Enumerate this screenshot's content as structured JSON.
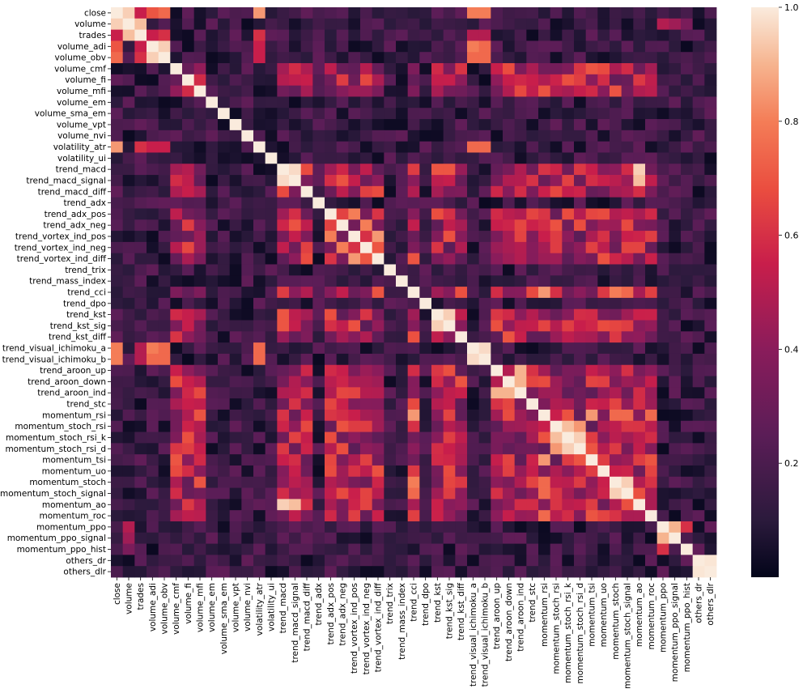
{
  "chart_data": {
    "type": "heatmap",
    "title": "",
    "xlabel": "",
    "ylabel": "",
    "variables": [
      "close",
      "volume",
      "trades",
      "volume_adi",
      "volume_obv",
      "volume_cmf",
      "volume_fi",
      "volume_mfi",
      "volume_em",
      "volume_sma_em",
      "volume_vpt",
      "volume_nvi",
      "volatility_atr",
      "volatility_ui",
      "trend_macd",
      "trend_macd_signal",
      "trend_macd_diff",
      "trend_adx",
      "trend_adx_pos",
      "trend_adx_neg",
      "trend_vortex_ind_pos",
      "trend_vortex_ind_neg",
      "trend_vortex_ind_diff",
      "trend_trix",
      "trend_mass_index",
      "trend_cci",
      "trend_dpo",
      "trend_kst",
      "trend_kst_sig",
      "trend_kst_diff",
      "trend_visual_ichimoku_a",
      "trend_visual_ichimoku_b",
      "trend_aroon_up",
      "trend_aroon_down",
      "trend_aroon_ind",
      "trend_stc",
      "momentum_rsi",
      "momentum_stoch_rsi",
      "momentum_stoch_rsi_k",
      "momentum_stoch_rsi_d",
      "momentum_tsi",
      "momentum_uo",
      "momentum_stoch",
      "momentum_stoch_signal",
      "momentum_ao",
      "momentum_roc",
      "momentum_ppo",
      "momentum_ppo_signal",
      "momentum_ppo_hist",
      "others_dr",
      "others_dlr"
    ],
    "value_range": [
      0.0,
      1.0
    ],
    "colorbar": {
      "ticks": [
        "0.2",
        "0.4",
        "0.6",
        "0.8",
        "1.0"
      ],
      "tick_values": [
        0.2,
        0.4,
        0.6,
        0.8,
        1.0
      ]
    },
    "colormap": "rocket",
    "cluster_groups": [
      [
        0,
        2,
        3,
        4,
        12,
        30,
        31
      ],
      [
        1,
        46,
        47,
        48
      ],
      [
        5,
        6,
        7,
        14,
        15,
        16,
        18,
        19,
        20,
        21,
        22,
        25,
        27,
        28,
        29,
        32,
        33,
        34,
        35,
        36,
        37,
        38,
        39,
        40,
        41,
        42,
        43,
        44,
        45
      ],
      [
        49,
        50
      ]
    ],
    "strong_pairs": [
      [
        0,
        1,
        0.95
      ],
      [
        0,
        2,
        0.55
      ],
      [
        0,
        3,
        0.7
      ],
      [
        0,
        4,
        0.75
      ],
      [
        0,
        12,
        0.85
      ],
      [
        0,
        30,
        0.8
      ],
      [
        0,
        31,
        0.8
      ],
      [
        1,
        2,
        0.92
      ],
      [
        1,
        46,
        0.5
      ],
      [
        1,
        47,
        0.45
      ],
      [
        1,
        48,
        0.35
      ],
      [
        2,
        3,
        0.55
      ],
      [
        2,
        4,
        0.6
      ],
      [
        2,
        12,
        0.6
      ],
      [
        2,
        30,
        0.5
      ],
      [
        2,
        31,
        0.5
      ],
      [
        3,
        4,
        0.95
      ],
      [
        3,
        12,
        0.55
      ],
      [
        3,
        30,
        0.8
      ],
      [
        3,
        31,
        0.75
      ],
      [
        4,
        12,
        0.55
      ],
      [
        4,
        30,
        0.75
      ],
      [
        4,
        31,
        0.75
      ],
      [
        12,
        30,
        0.75
      ],
      [
        12,
        31,
        0.75
      ],
      [
        30,
        31,
        0.97
      ],
      [
        14,
        15,
        0.97
      ],
      [
        14,
        44,
        0.95
      ],
      [
        15,
        44,
        0.92
      ],
      [
        27,
        28,
        0.95
      ],
      [
        14,
        27,
        0.7
      ],
      [
        14,
        28,
        0.7
      ],
      [
        14,
        40,
        0.55
      ],
      [
        18,
        19,
        0.65
      ],
      [
        18,
        20,
        0.8
      ],
      [
        19,
        21,
        0.8
      ],
      [
        20,
        21,
        0.6
      ],
      [
        20,
        22,
        0.85
      ],
      [
        21,
        22,
        0.7
      ],
      [
        25,
        36,
        0.85
      ],
      [
        25,
        42,
        0.8
      ],
      [
        25,
        43,
        0.75
      ],
      [
        32,
        33,
        0.5
      ],
      [
        32,
        34,
        0.9
      ],
      [
        33,
        34,
        0.9
      ],
      [
        36,
        37,
        0.55
      ],
      [
        36,
        42,
        0.75
      ],
      [
        36,
        43,
        0.75
      ],
      [
        36,
        45,
        0.75
      ],
      [
        36,
        40,
        0.85
      ],
      [
        37,
        38,
        0.92
      ],
      [
        37,
        39,
        0.85
      ],
      [
        38,
        39,
        0.95
      ],
      [
        42,
        43,
        0.95
      ],
      [
        46,
        47,
        0.9
      ],
      [
        46,
        48,
        0.6
      ],
      [
        47,
        48,
        0.2
      ],
      [
        49,
        50,
        0.99
      ]
    ]
  }
}
